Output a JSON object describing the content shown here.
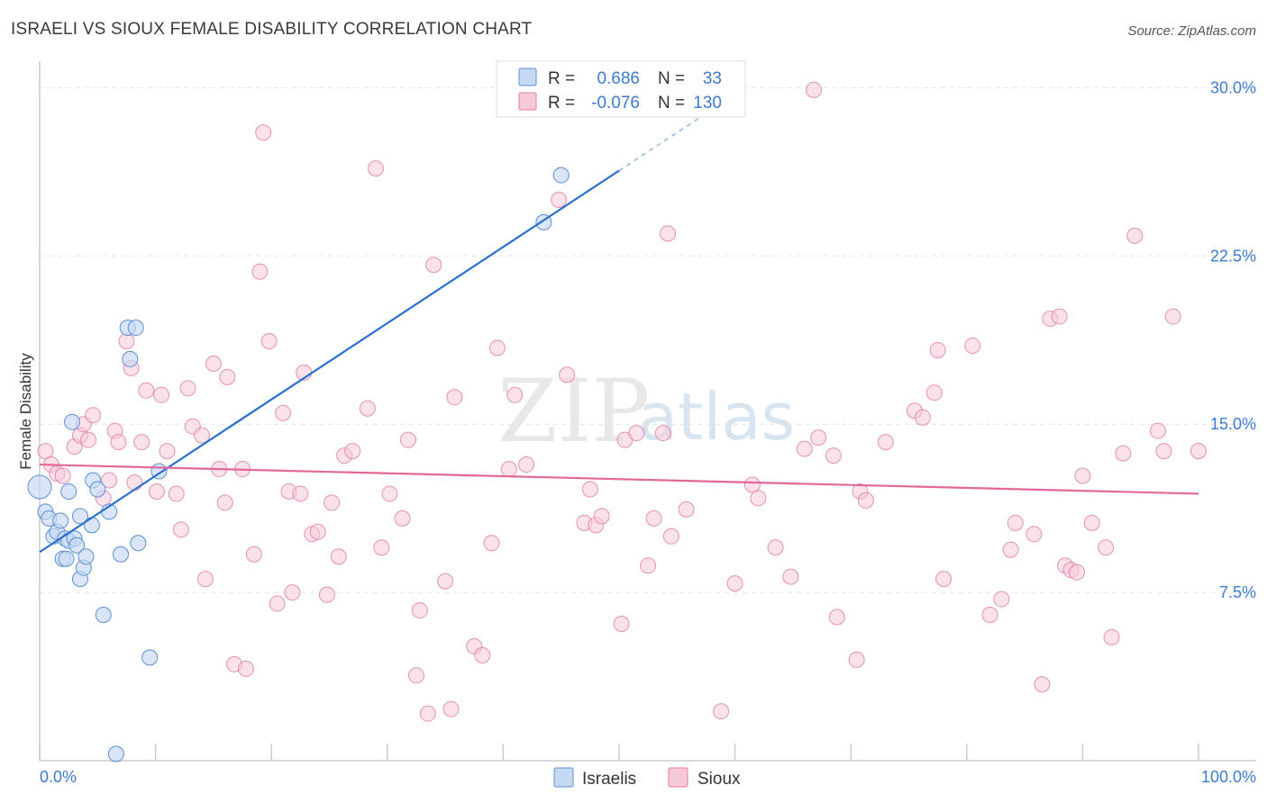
{
  "title": "ISRAELI VS SIOUX FEMALE DISABILITY CORRELATION CHART",
  "source": "Source: ZipAtlas.com",
  "watermark": {
    "zip": "ZIP",
    "atlas": "atlas"
  },
  "colors": {
    "israelis": "#5b8fd6",
    "israelis_fill": "#c6d9f3",
    "israelis_line": "#2a70cc",
    "sioux": "#e07ba0",
    "sioux_fill": "#f6c9d8",
    "sioux_line": "#e2679a",
    "tick": "#3d7bd1"
  },
  "legend": {
    "rows": [
      {
        "r_label": "R =",
        "r_value": "0.686",
        "n_label": "N =",
        "n_value": "33"
      },
      {
        "r_label": "R =",
        "r_value": "-0.076",
        "n_label": "N =",
        "n_value": "130"
      }
    ]
  },
  "chart_data": {
    "type": "scatter",
    "title": "ISRAELI VS SIOUX FEMALE DISABILITY CORRELATION CHART",
    "xlabel": "",
    "ylabel": "Female Disability",
    "xlim": [
      0,
      100
    ],
    "ylim": [
      0,
      31.5
    ],
    "x_tick_labels": [
      "0.0%",
      "100.0%"
    ],
    "y_ticks": [
      7.5,
      15.0,
      22.5,
      30.0
    ],
    "y_tick_labels": [
      "7.5%",
      "15.0%",
      "22.5%",
      "30.0%"
    ],
    "legend_placement": "top-center",
    "series": [
      {
        "name": "Israelis",
        "r": 0.686,
        "n": 33,
        "trend": {
          "x0": 0,
          "y0": 9.3,
          "x1": 50,
          "y1": 26.3,
          "dashed_to_x": 60,
          "dashed_to_y": 29.7
        },
        "points": [
          [
            0,
            12.2
          ],
          [
            0.5,
            11.1
          ],
          [
            0.8,
            10.8
          ],
          [
            1.2,
            10.0
          ],
          [
            1.5,
            10.2
          ],
          [
            1.8,
            10.7
          ],
          [
            2.0,
            9.0
          ],
          [
            2.2,
            9.9
          ],
          [
            2.5,
            9.8
          ],
          [
            2.3,
            9.0
          ],
          [
            2.5,
            12.0
          ],
          [
            2.8,
            15.1
          ],
          [
            3.0,
            9.9
          ],
          [
            3.2,
            9.6
          ],
          [
            3.5,
            10.9
          ],
          [
            3.5,
            8.1
          ],
          [
            3.8,
            8.6
          ],
          [
            4.0,
            9.1
          ],
          [
            4.5,
            10.5
          ],
          [
            4.6,
            12.5
          ],
          [
            5.0,
            12.1
          ],
          [
            6.0,
            11.1
          ],
          [
            5.5,
            6.5
          ],
          [
            7.0,
            9.2
          ],
          [
            7.6,
            19.3
          ],
          [
            7.8,
            17.9
          ],
          [
            8.3,
            19.3
          ],
          [
            8.5,
            9.7
          ],
          [
            9.5,
            4.6
          ],
          [
            10.3,
            12.9
          ],
          [
            6.6,
            0.3
          ],
          [
            43.5,
            24.0
          ],
          [
            45.0,
            26.1
          ]
        ]
      },
      {
        "name": "Sioux",
        "r": -0.076,
        "n": 130,
        "trend": {
          "x0": 0,
          "y0": 13.2,
          "x1": 100,
          "y1": 11.9
        },
        "points": [
          [
            0.5,
            13.8
          ],
          [
            1.0,
            13.2
          ],
          [
            1.5,
            12.8
          ],
          [
            2.0,
            12.7
          ],
          [
            3.0,
            14.0
          ],
          [
            3.5,
            14.5
          ],
          [
            3.8,
            15.0
          ],
          [
            4.2,
            14.3
          ],
          [
            4.6,
            15.4
          ],
          [
            5.5,
            11.7
          ],
          [
            6.0,
            12.5
          ],
          [
            6.5,
            14.7
          ],
          [
            6.8,
            14.2
          ],
          [
            7.5,
            18.7
          ],
          [
            7.9,
            17.5
          ],
          [
            8.2,
            12.4
          ],
          [
            8.8,
            14.2
          ],
          [
            9.2,
            16.5
          ],
          [
            10.1,
            12.0
          ],
          [
            10.5,
            16.3
          ],
          [
            11.0,
            13.8
          ],
          [
            11.8,
            11.9
          ],
          [
            12.2,
            10.3
          ],
          [
            12.8,
            16.6
          ],
          [
            13.2,
            14.9
          ],
          [
            14.0,
            14.5
          ],
          [
            14.3,
            8.1
          ],
          [
            15.0,
            17.7
          ],
          [
            15.5,
            13.0
          ],
          [
            16.0,
            11.5
          ],
          [
            16.2,
            17.1
          ],
          [
            16.8,
            4.3
          ],
          [
            17.5,
            13.0
          ],
          [
            17.8,
            4.1
          ],
          [
            18.5,
            9.2
          ],
          [
            19.0,
            21.8
          ],
          [
            19.3,
            28.0
          ],
          [
            19.8,
            18.7
          ],
          [
            20.5,
            7.0
          ],
          [
            21.0,
            15.5
          ],
          [
            21.5,
            12.0
          ],
          [
            21.8,
            7.5
          ],
          [
            22.5,
            11.9
          ],
          [
            22.8,
            17.3
          ],
          [
            23.5,
            10.1
          ],
          [
            24.0,
            10.2
          ],
          [
            24.8,
            7.4
          ],
          [
            25.2,
            11.5
          ],
          [
            25.8,
            9.1
          ],
          [
            26.3,
            13.6
          ],
          [
            27.0,
            13.8
          ],
          [
            28.3,
            15.7
          ],
          [
            29.0,
            26.4
          ],
          [
            29.5,
            9.5
          ],
          [
            30.2,
            11.9
          ],
          [
            31.3,
            10.8
          ],
          [
            31.8,
            14.3
          ],
          [
            32.5,
            3.8
          ],
          [
            32.8,
            6.7
          ],
          [
            33.5,
            2.1
          ],
          [
            34.0,
            22.1
          ],
          [
            35.0,
            8.0
          ],
          [
            35.5,
            2.3
          ],
          [
            35.8,
            16.2
          ],
          [
            37.5,
            5.1
          ],
          [
            38.2,
            4.7
          ],
          [
            39.0,
            9.7
          ],
          [
            39.5,
            18.4
          ],
          [
            40.5,
            13.0
          ],
          [
            41.0,
            16.3
          ],
          [
            42.0,
            13.2
          ],
          [
            44.8,
            25.0
          ],
          [
            45.5,
            17.2
          ],
          [
            47.0,
            10.6
          ],
          [
            47.5,
            12.1
          ],
          [
            48.0,
            10.5
          ],
          [
            48.5,
            10.9
          ],
          [
            50.2,
            6.1
          ],
          [
            50.5,
            14.3
          ],
          [
            51.5,
            14.6
          ],
          [
            52.5,
            8.7
          ],
          [
            53.0,
            10.8
          ],
          [
            53.8,
            14.6
          ],
          [
            54.2,
            23.5
          ],
          [
            54.5,
            10.0
          ],
          [
            55.8,
            11.2
          ],
          [
            58.8,
            2.2
          ],
          [
            60.0,
            7.9
          ],
          [
            61.5,
            12.3
          ],
          [
            62.0,
            11.7
          ],
          [
            63.5,
            9.5
          ],
          [
            64.8,
            8.2
          ],
          [
            66.0,
            13.9
          ],
          [
            66.8,
            29.9
          ],
          [
            67.2,
            14.4
          ],
          [
            68.5,
            13.6
          ],
          [
            68.8,
            6.4
          ],
          [
            70.5,
            4.5
          ],
          [
            70.8,
            12.0
          ],
          [
            71.3,
            11.6
          ],
          [
            73.0,
            14.2
          ],
          [
            75.5,
            15.6
          ],
          [
            76.2,
            15.3
          ],
          [
            77.2,
            16.4
          ],
          [
            77.5,
            18.3
          ],
          [
            78.0,
            8.1
          ],
          [
            80.5,
            18.5
          ],
          [
            82.0,
            6.5
          ],
          [
            83.0,
            7.2
          ],
          [
            83.8,
            9.4
          ],
          [
            84.2,
            10.6
          ],
          [
            85.8,
            10.1
          ],
          [
            86.5,
            3.4
          ],
          [
            87.2,
            19.7
          ],
          [
            88.0,
            19.8
          ],
          [
            88.5,
            8.7
          ],
          [
            89.0,
            8.5
          ],
          [
            89.5,
            8.4
          ],
          [
            90.0,
            12.7
          ],
          [
            90.8,
            10.6
          ],
          [
            92.0,
            9.5
          ],
          [
            92.5,
            5.5
          ],
          [
            93.5,
            13.7
          ],
          [
            94.5,
            23.4
          ],
          [
            96.5,
            14.7
          ],
          [
            97.0,
            13.8
          ],
          [
            97.8,
            19.8
          ],
          [
            100.0,
            13.8
          ]
        ]
      }
    ]
  },
  "bottom_legend": {
    "israelis": "Israelis",
    "sioux": "Sioux"
  }
}
